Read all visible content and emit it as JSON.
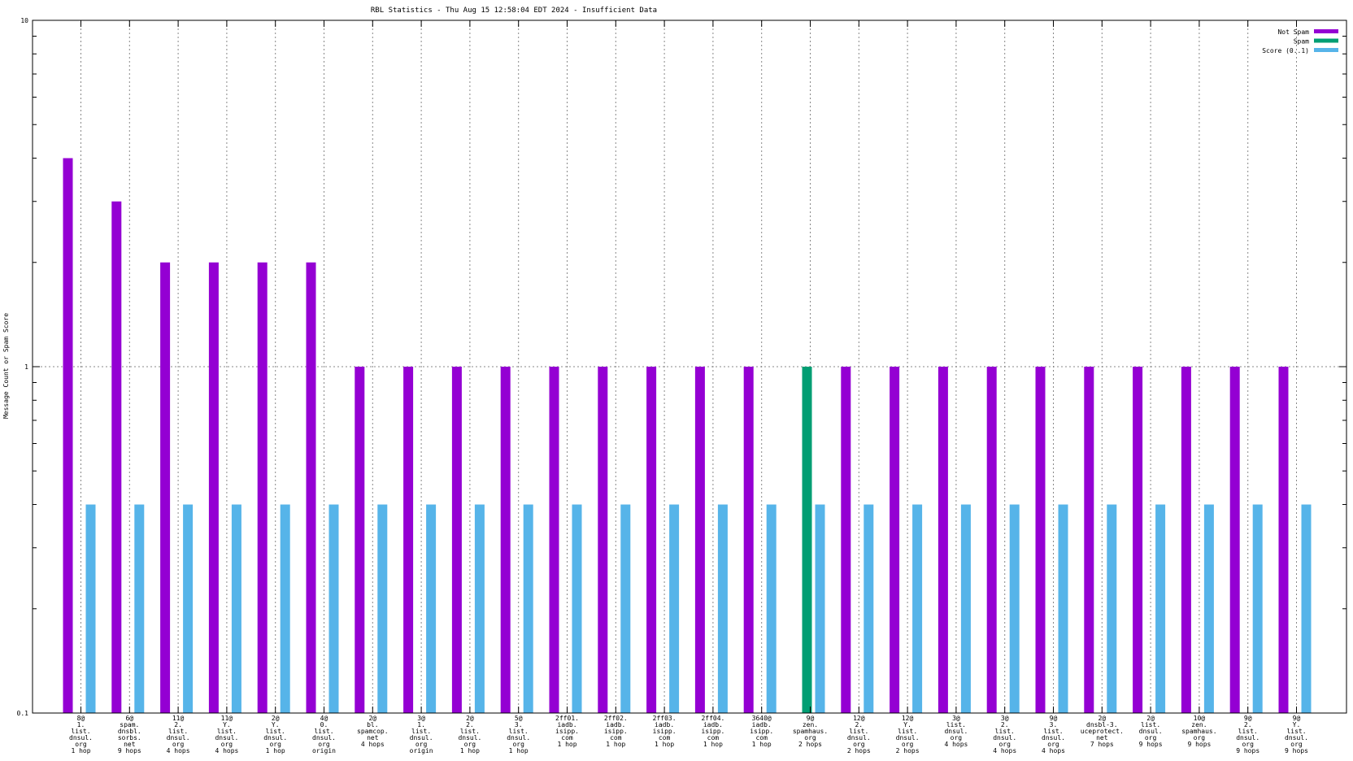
{
  "chart_data": {
    "type": "bar",
    "title": "RBL Statistics - Thu Aug 15 12:58:04 EDT 2024 - Insufficient Data",
    "xlabel": "",
    "ylabel": "Message Count or Spam Score",
    "yscale": "log",
    "ylim": [
      0.1,
      10
    ],
    "yticks": [
      "0.1",
      "1",
      "10"
    ],
    "grid": true,
    "legend_position": "top-right",
    "categories": [
      [
        "8@",
        "1.",
        "list.",
        "dnsul.",
        "org",
        "1 hop"
      ],
      [
        "6@",
        "spam.",
        "dnsbl.",
        "sorbs.",
        "net",
        "9 hops"
      ],
      [
        "11@",
        "2.",
        "list.",
        "dnsul.",
        "org",
        "4 hops"
      ],
      [
        "11@",
        "Y.",
        "list.",
        "dnsul.",
        "org",
        "4 hops"
      ],
      [
        "2@",
        "Y.",
        "list.",
        "dnsul.",
        "org",
        "1 hop"
      ],
      [
        "4@",
        "0.",
        "list.",
        "dnsul.",
        "org",
        "origin"
      ],
      [
        "2@",
        "bl.",
        "spamcop.",
        "net",
        "4 hops"
      ],
      [
        "3@",
        "1.",
        "list.",
        "dnsul.",
        "org",
        "origin"
      ],
      [
        "2@",
        "2.",
        "list.",
        "dnsul.",
        "org",
        "1 hop"
      ],
      [
        "5@",
        "3.",
        "list.",
        "dnsul.",
        "org",
        "1 hop"
      ],
      [
        "2ff01.",
        "iadb.",
        "isipp.",
        "com",
        "1 hop"
      ],
      [
        "2ff02.",
        "iadb.",
        "isipp.",
        "com",
        "1 hop"
      ],
      [
        "2ff03.",
        "iadb.",
        "isipp.",
        "com",
        "1 hop"
      ],
      [
        "2ff04.",
        "iadb.",
        "isipp.",
        "com",
        "1 hop"
      ],
      [
        "3640@",
        "iadb.",
        "isipp.",
        "com",
        "1 hop"
      ],
      [
        "9@",
        "zen.",
        "spamhaus.",
        "org",
        "2 hops"
      ],
      [
        "12@",
        "2.",
        "list.",
        "dnsul.",
        "org",
        "2 hops"
      ],
      [
        "12@",
        "Y.",
        "list.",
        "dnsul.",
        "org",
        "2 hops"
      ],
      [
        "3@",
        "list.",
        "dnsul.",
        "org",
        "4 hops"
      ],
      [
        "3@",
        "2.",
        "list.",
        "dnsul.",
        "org",
        "4 hops"
      ],
      [
        "9@",
        "3.",
        "list.",
        "dnsul.",
        "org",
        "4 hops"
      ],
      [
        "2@",
        "dnsbl-3.",
        "uceprotect.",
        "net",
        "7 hops"
      ],
      [
        "2@",
        "list.",
        "dnsul.",
        "org",
        "9 hops"
      ],
      [
        "10@",
        "zen.",
        "spamhaus.",
        "org",
        "9 hops"
      ],
      [
        "9@",
        "2.",
        "list.",
        "dnsul.",
        "org",
        "9 hops"
      ],
      [
        "9@",
        "Y.",
        "list.",
        "dnsul.",
        "org",
        "9 hops"
      ]
    ],
    "series": [
      {
        "name": "Not Spam",
        "color": "#9400d3",
        "values": [
          4,
          3,
          2,
          2,
          2,
          2,
          1,
          1,
          1,
          1,
          1,
          1,
          1,
          1,
          1,
          0,
          1,
          1,
          1,
          1,
          1,
          1,
          1,
          1,
          1,
          1
        ]
      },
      {
        "name": "Spam",
        "color": "#009e73",
        "values": [
          0,
          0,
          0,
          0,
          0,
          0,
          0,
          0,
          0,
          0,
          0,
          0,
          0,
          0,
          0,
          1,
          0,
          0,
          0,
          0,
          0,
          0,
          0,
          0,
          0,
          0
        ]
      },
      {
        "name": "Score (0..1)",
        "color": "#56b4e9",
        "values": [
          0.4,
          0.4,
          0.4,
          0.4,
          0.4,
          0.4,
          0.4,
          0.4,
          0.4,
          0.4,
          0.4,
          0.4,
          0.4,
          0.4,
          0.4,
          0.4,
          0.4,
          0.4,
          0.4,
          0.4,
          0.4,
          0.4,
          0.4,
          0.4,
          0.4,
          0.4
        ]
      }
    ]
  }
}
